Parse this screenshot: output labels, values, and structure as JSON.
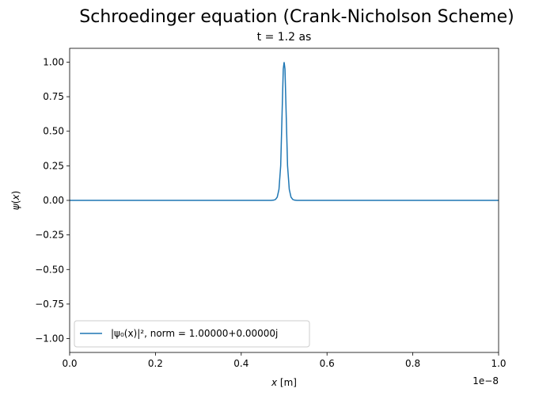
{
  "chart_data": {
    "type": "line",
    "suptitle": "Schroedinger equation (Crank-Nicholson Scheme)",
    "title": "t = 1.2 as",
    "xlabel": "x [m]",
    "ylabel": "ψ(x)",
    "x_offset_label": "1e−8",
    "xlim": [
      0,
      1e-08
    ],
    "ylim": [
      -1.1,
      1.1
    ],
    "x_ticks": [
      0,
      2e-09,
      4e-09,
      6e-09,
      8e-09,
      1e-08
    ],
    "x_tick_labels": [
      "0.0",
      "0.2",
      "0.4",
      "0.6",
      "0.8",
      "1.0"
    ],
    "y_ticks": [
      -1.0,
      -0.75,
      -0.5,
      -0.25,
      0.0,
      0.25,
      0.5,
      0.75,
      1.0
    ],
    "y_tick_labels": [
      "−1.00",
      "−0.75",
      "−0.50",
      "−0.25",
      "0.00",
      "0.25",
      "0.50",
      "0.75",
      "1.00"
    ],
    "grid": false,
    "legend_position": "lower-left",
    "series": [
      {
        "name": "|ψ₀(x)|², norm = 1.00000+0.00000j",
        "color": "#1f77b4",
        "x": [
          0,
          4.6e-09,
          4.7e-09,
          4.76e-09,
          4.8e-09,
          4.84e-09,
          4.88e-09,
          4.92e-09,
          4.95e-09,
          4.98e-09,
          5e-09,
          5.02e-09,
          5.05e-09,
          5.08e-09,
          5.12e-09,
          5.16e-09,
          5.2e-09,
          5.24e-09,
          5.3e-09,
          5.4e-09,
          1e-08
        ],
        "y": [
          0,
          0,
          0.0001,
          0.002,
          0.007,
          0.024,
          0.08,
          0.25,
          0.6,
          0.95,
          1.0,
          0.95,
          0.6,
          0.25,
          0.08,
          0.024,
          0.007,
          0.002,
          0.0001,
          0,
          0
        ]
      }
    ]
  }
}
